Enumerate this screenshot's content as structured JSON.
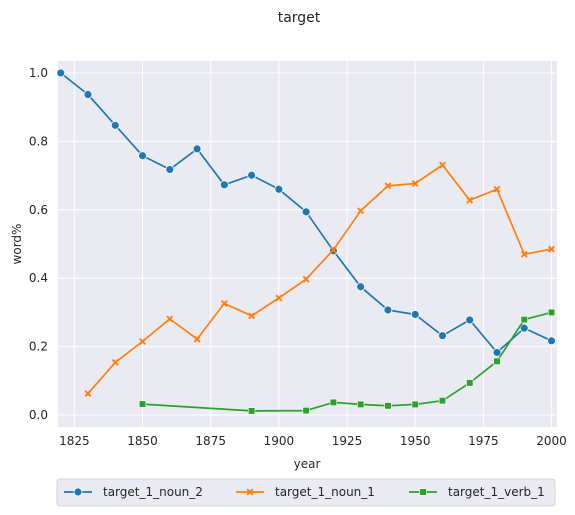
{
  "chart_data": {
    "type": "line",
    "title": "target",
    "xlabel": "year",
    "ylabel": "word%",
    "xlim": [
      1819,
      2002
    ],
    "ylim": [
      -0.035,
      1.035
    ],
    "xticks": [
      1825,
      1850,
      1875,
      1900,
      1925,
      1950,
      1975,
      2000
    ],
    "yticks": [
      0.0,
      0.2,
      0.4,
      0.6,
      0.8,
      1.0
    ],
    "xtick_labels": [
      "1825",
      "1850",
      "1875",
      "1900",
      "1925",
      "1950",
      "1975",
      "2000"
    ],
    "ytick_labels": [
      "0.0",
      "0.2",
      "0.4",
      "0.6",
      "0.8",
      "1.0"
    ],
    "grid": true,
    "legend_position": "bottom-center",
    "series": [
      {
        "name": "target_1_noun_2",
        "color": "#1f77b4",
        "marker": "circle",
        "x": [
          1820,
          1830,
          1840,
          1850,
          1860,
          1870,
          1880,
          1890,
          1900,
          1910,
          1920,
          1930,
          1940,
          1950,
          1960,
          1970,
          1980,
          1990,
          2000
        ],
        "y": [
          1.0,
          0.937,
          0.847,
          0.758,
          0.718,
          0.778,
          0.673,
          0.701,
          0.66,
          0.594,
          0.48,
          0.375,
          0.307,
          0.294,
          0.232,
          0.278,
          0.183,
          0.254,
          0.217
        ]
      },
      {
        "name": "target_1_noun_1",
        "color": "#ff7f0e",
        "marker": "x",
        "x": [
          1830,
          1840,
          1850,
          1860,
          1870,
          1880,
          1890,
          1900,
          1910,
          1920,
          1930,
          1940,
          1950,
          1960,
          1970,
          1980,
          1990,
          2000
        ],
        "y": [
          0.063,
          0.154,
          0.215,
          0.281,
          0.222,
          0.326,
          0.29,
          0.342,
          0.397,
          0.483,
          0.597,
          0.67,
          0.677,
          0.731,
          0.628,
          0.66,
          0.47,
          0.485
        ]
      },
      {
        "name": "target_1_verb_1",
        "color": "#2ca02c",
        "marker": "square",
        "x": [
          1850,
          1890,
          1910,
          1920,
          1930,
          1940,
          1950,
          1960,
          1970,
          1980,
          1990,
          2000
        ],
        "y": [
          0.032,
          0.012,
          0.013,
          0.037,
          0.031,
          0.027,
          0.031,
          0.042,
          0.094,
          0.157,
          0.279,
          0.3
        ]
      }
    ]
  }
}
